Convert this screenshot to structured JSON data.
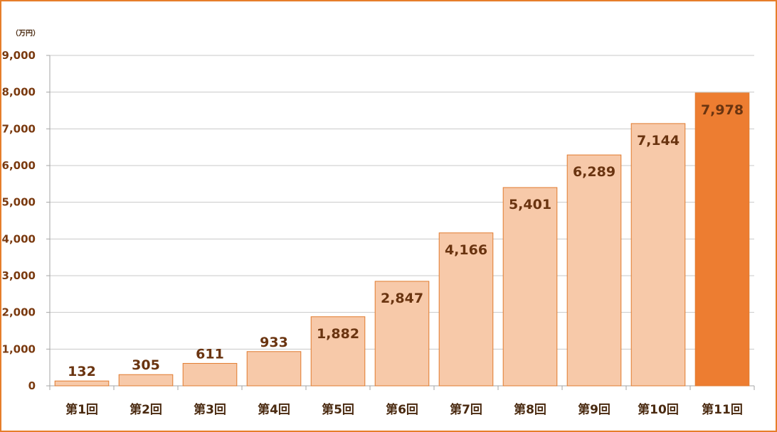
{
  "chart_data": {
    "type": "bar",
    "unit_label": "（万円）",
    "categories": [
      "第1回",
      "第2回",
      "第3回",
      "第4回",
      "第5回",
      "第6回",
      "第7回",
      "第8回",
      "第9回",
      "第10回",
      "第11回"
    ],
    "values": [
      132,
      305,
      611,
      933,
      1882,
      2847,
      4166,
      5401,
      6289,
      7144,
      7978
    ],
    "value_labels": [
      "132",
      "305",
      "611",
      "933",
      "1,882",
      "2,847",
      "4,166",
      "5,401",
      "6,289",
      "7,144",
      "7,978"
    ],
    "yticks": [
      "0",
      "1,000",
      "2,000",
      "3,000",
      "4,000",
      "5,000",
      "6,000",
      "7,000",
      "8,000",
      "9,000"
    ],
    "ylim": [
      0,
      9000
    ],
    "grid": true,
    "highlight_index": 10,
    "colors": {
      "bar": "#F7C9A9",
      "bar_stroke": "#E07A2E",
      "highlight": "#ED7D31",
      "border": "#E67E2A",
      "grid": "#C8C8C8",
      "axis": "#A6A6A6"
    }
  }
}
